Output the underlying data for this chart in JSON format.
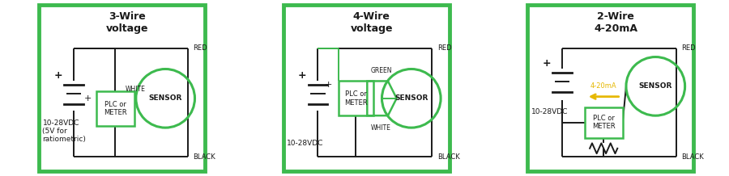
{
  "bg_color": "#ffffff",
  "border_color": "#3dba4e",
  "line_color": "#1a1a1a",
  "green_color": "#3dba4e",
  "yellow_color": "#e6b800",
  "panel1": {
    "title": "3-Wire\nvoltage",
    "subtitle": "10-28VDC\n(5V for\nratiometric)"
  },
  "panel2": {
    "title": "4-Wire\nvoltage",
    "subtitle": "10-28VDC"
  },
  "panel3": {
    "title": "2-Wire\n4-20mA",
    "subtitle": "10-28VDC",
    "arrow_label": "4-20mA"
  }
}
